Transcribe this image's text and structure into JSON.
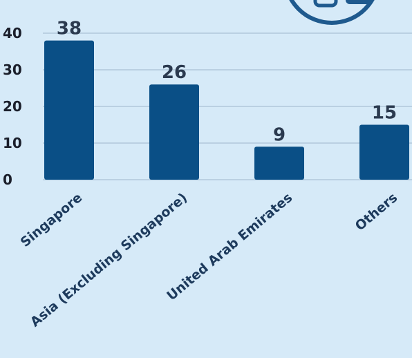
{
  "chart_data": {
    "type": "bar",
    "categories": [
      "Singapore",
      "Asia (Excluding Singapore)",
      "United Arab Emirates",
      "Others"
    ],
    "values": [
      38,
      26,
      9,
      15
    ],
    "data_labels": [
      "38",
      "26",
      "9",
      "15"
    ],
    "y_ticks": [
      0,
      10,
      20,
      30,
      40
    ],
    "ylim": [
      0,
      42
    ],
    "grid": true,
    "title": "",
    "xlabel": "",
    "ylabel": "",
    "colors": {
      "bar": "#0a4f86",
      "grid": "#9fb7cc",
      "background": "#d6eaf8",
      "logo_stroke": "#1f5a8e"
    }
  },
  "logo": {
    "icon": "partial-circle-logo-icon"
  }
}
